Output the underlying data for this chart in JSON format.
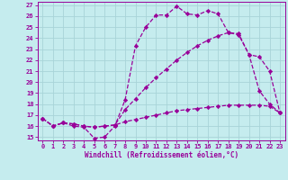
{
  "xlabel": "Windchill (Refroidissement éolien,°C)",
  "bg_color": "#c5ecee",
  "line_color": "#990099",
  "grid_color": "#a8d4d8",
  "xlim": [
    -0.5,
    23.5
  ],
  "ylim": [
    14.7,
    27.3
  ],
  "xticks": [
    0,
    1,
    2,
    3,
    4,
    5,
    6,
    7,
    8,
    9,
    10,
    11,
    12,
    13,
    14,
    15,
    16,
    17,
    18,
    19,
    20,
    21,
    22,
    23
  ],
  "yticks": [
    15,
    16,
    17,
    18,
    19,
    20,
    21,
    22,
    23,
    24,
    25,
    26,
    27
  ],
  "line1_x": [
    0,
    1,
    2,
    3,
    4,
    5,
    6,
    7,
    8,
    9,
    10,
    11,
    12,
    13,
    14,
    15,
    16,
    17,
    18,
    19,
    20,
    21,
    22,
    23
  ],
  "line1_y": [
    16.7,
    16.0,
    16.3,
    16.0,
    15.9,
    14.9,
    15.0,
    16.0,
    18.4,
    23.3,
    25.0,
    26.1,
    26.1,
    26.9,
    26.2,
    26.1,
    26.5,
    26.2,
    24.5,
    24.3,
    22.5,
    19.2,
    18.0,
    17.2
  ],
  "line2_x": [
    0,
    1,
    2,
    3,
    4,
    5,
    6,
    7,
    8,
    9,
    10,
    11,
    12,
    13,
    14,
    15,
    16,
    17,
    18,
    19,
    20,
    21,
    22,
    23
  ],
  "line2_y": [
    16.7,
    16.0,
    16.3,
    16.2,
    16.0,
    15.9,
    16.0,
    16.1,
    17.5,
    18.5,
    19.5,
    20.4,
    21.2,
    22.0,
    22.7,
    23.3,
    23.8,
    24.2,
    24.5,
    24.4,
    22.5,
    22.3,
    21.0,
    17.2
  ],
  "line3_x": [
    0,
    1,
    2,
    3,
    4,
    5,
    6,
    7,
    8,
    9,
    10,
    11,
    12,
    13,
    14,
    15,
    16,
    17,
    18,
    19,
    20,
    21,
    22,
    23
  ],
  "line3_y": [
    16.7,
    16.0,
    16.3,
    16.2,
    16.0,
    15.9,
    16.0,
    16.1,
    16.4,
    16.6,
    16.8,
    17.0,
    17.2,
    17.4,
    17.5,
    17.6,
    17.7,
    17.8,
    17.9,
    17.9,
    17.9,
    17.9,
    17.8,
    17.2
  ],
  "marker": "D",
  "markersize": 2.2,
  "linewidth": 0.9,
  "tick_fontsize": 5.0,
  "xlabel_fontsize": 5.5
}
